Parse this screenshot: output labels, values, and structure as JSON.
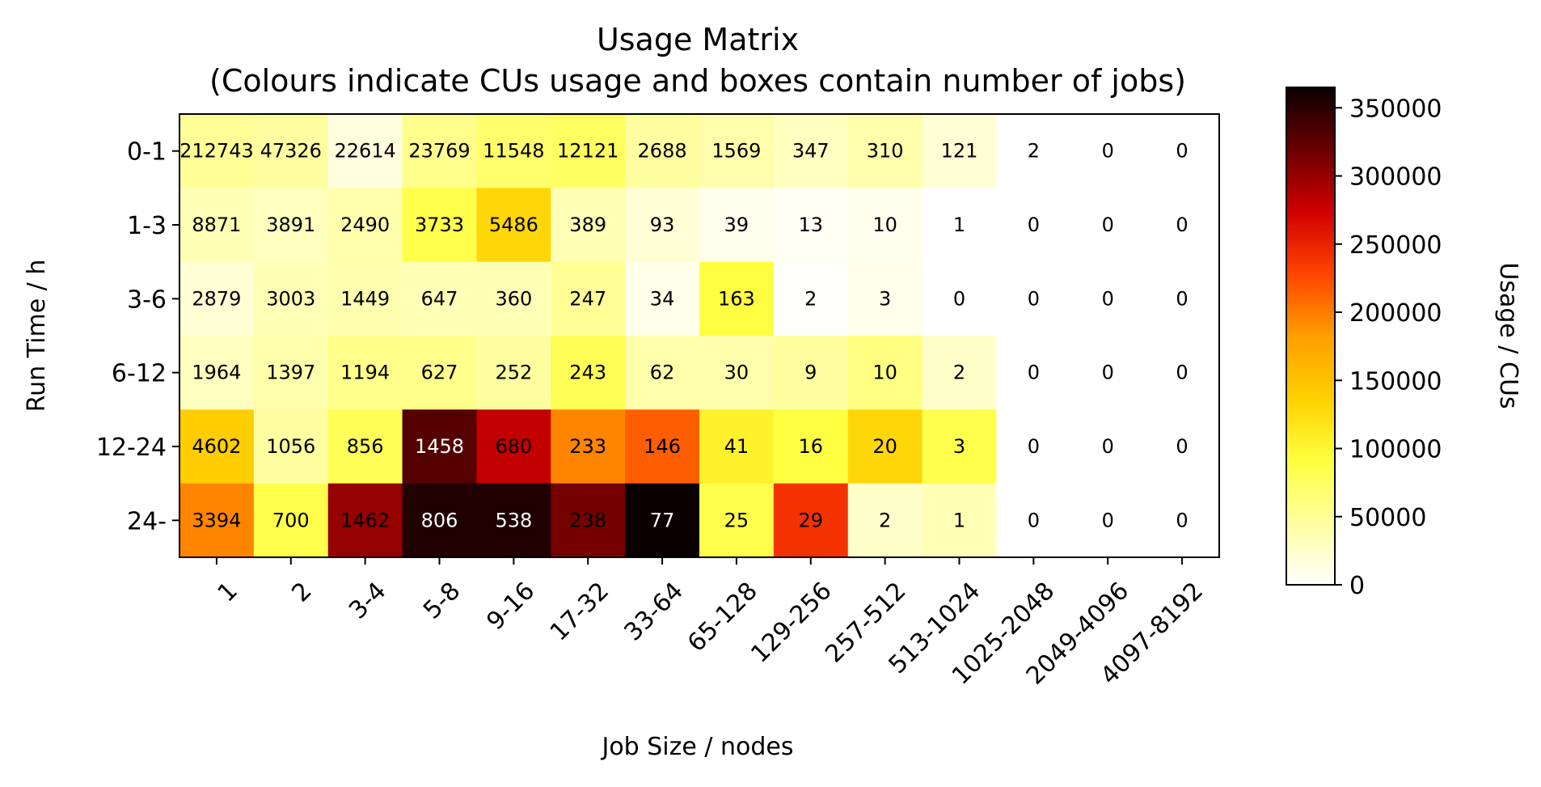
{
  "chart_data": {
    "type": "heatmap",
    "title": "Usage Matrix",
    "subtitle": "(Colours indicate CUs usage and boxes contain number of jobs)",
    "xlabel": "Job Size / nodes",
    "ylabel": "Run Time / h",
    "x_categories": [
      "1",
      "2",
      "3-4",
      "5-8",
      "9-16",
      "17-32",
      "33-64",
      "65-128",
      "129-256",
      "257-512",
      "513-1024",
      "1025-2048",
      "2049-4096",
      "4097-8192"
    ],
    "y_categories": [
      "0-1",
      "1-3",
      "3-6",
      "6-12",
      "12-24",
      "24-"
    ],
    "job_counts": [
      [
        "212743",
        "47326",
        "22614",
        "23769",
        "11548",
        "12121",
        "2688",
        "1569",
        "347",
        "310",
        "121",
        "2",
        "0",
        "0"
      ],
      [
        "8871",
        "3891",
        "2490",
        "3733",
        "5486",
        "389",
        "93",
        "39",
        "13",
        "10",
        "1",
        "0",
        "0",
        "0"
      ],
      [
        "2879",
        "3003",
        "1449",
        "647",
        "360",
        "247",
        "34",
        "163",
        "2",
        "3",
        "0",
        "0",
        "0",
        "0"
      ],
      [
        "1964",
        "1397",
        "1194",
        "627",
        "252",
        "243",
        "62",
        "30",
        "9",
        "10",
        "2",
        "0",
        "0",
        "0"
      ],
      [
        "4602",
        "1056",
        "856",
        "1458",
        "680",
        "233",
        "146",
        "41",
        "16",
        "20",
        "3",
        "0",
        "0",
        "0"
      ],
      [
        "3394",
        "700",
        "1462",
        "806",
        "538",
        "238",
        "77",
        "25",
        "29",
        "2",
        "1",
        "0",
        "0",
        "0"
      ]
    ],
    "usage_cus": [
      [
        50000,
        45000,
        15000,
        55000,
        70000,
        75000,
        45000,
        40000,
        30000,
        40000,
        20000,
        0,
        0,
        0
      ],
      [
        35000,
        30000,
        40000,
        85000,
        130000,
        35000,
        20000,
        8000,
        5000,
        8000,
        0,
        0,
        0,
        0
      ],
      [
        20000,
        35000,
        38000,
        35000,
        35000,
        50000,
        10000,
        90000,
        3000,
        10000,
        0,
        0,
        0,
        0
      ],
      [
        30000,
        40000,
        55000,
        55000,
        45000,
        80000,
        40000,
        40000,
        45000,
        60000,
        25000,
        0,
        0,
        0
      ],
      [
        140000,
        45000,
        80000,
        330000,
        280000,
        195000,
        215000,
        105000,
        90000,
        130000,
        85000,
        0,
        0,
        0
      ],
      [
        195000,
        85000,
        300000,
        355000,
        355000,
        315000,
        365000,
        85000,
        240000,
        25000,
        35000,
        0,
        0,
        0
      ]
    ],
    "colorbar": {
      "label": "Usage / CUs",
      "min": 0,
      "max": 365000,
      "colormap": "hot_r",
      "ticks": [
        "0",
        "50000",
        "100000",
        "150000",
        "200000",
        "250000",
        "300000",
        "350000"
      ]
    }
  }
}
